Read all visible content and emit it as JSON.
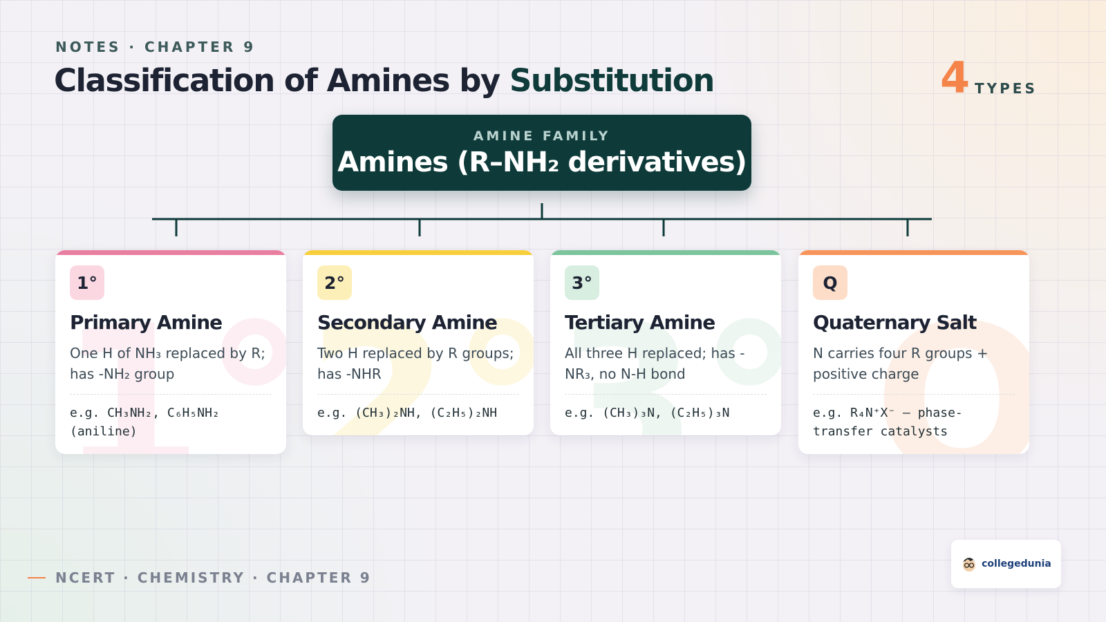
{
  "header": {
    "eyebrow": "NOTES · CHAPTER 9",
    "title": "Classification of Amines by",
    "title_highlight": "Substitution",
    "count": 4,
    "count_label": "TYPES"
  },
  "root": {
    "label": "AMINE FAMILY",
    "title": "Amines (R–NH₂ derivatives)"
  },
  "cards": [
    {
      "badge": "1°",
      "name": "Primary Amine",
      "description": "One H of NH₃ replaced by R; has -NH₂ group",
      "example": "e.g. CH₃NH₂, C₆H₅NH₂ (aniline)"
    },
    {
      "badge": "2°",
      "name": "Secondary Amine",
      "description": "Two H replaced by R groups; has -NHR",
      "example": "e.g. (CH₃)₂NH, (C₂H₅)₂NH"
    },
    {
      "badge": "3°",
      "name": "Tertiary Amine",
      "description": "All three H replaced; has -NR₃, no N-H bond",
      "example": "e.g. (CH₃)₃N, (C₂H₅)₃N"
    },
    {
      "badge": "Q",
      "name": "Quaternary Salt",
      "description": "N carries four R groups + positive charge",
      "example": "e.g. R₄N⁺X⁻ — phase-transfer catalysts"
    }
  ],
  "footer": {
    "text": "NCERT · CHEMISTRY · CHAPTER 9",
    "brand": "collegedunia"
  }
}
